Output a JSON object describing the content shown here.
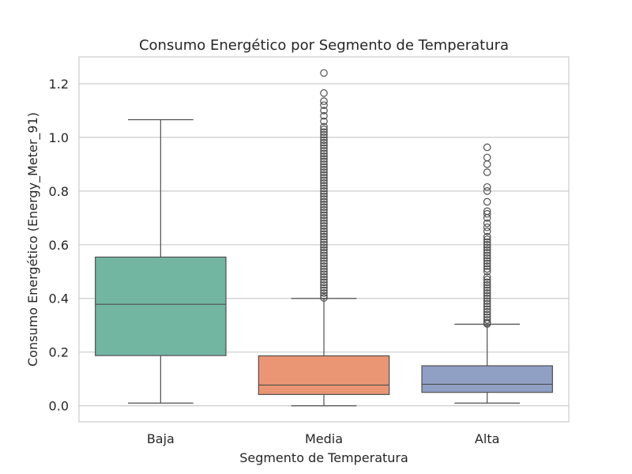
{
  "chart_data": {
    "type": "box",
    "title": "Consumo Energético por Segmento de Temperatura",
    "xlabel": "Segmento de Temperatura",
    "ylabel": "Consumo Energético (Energy_Meter_91)",
    "ylim": [
      -0.06,
      1.3
    ],
    "yticks": [
      0.0,
      0.2,
      0.4,
      0.6,
      0.8,
      1.0,
      1.2
    ],
    "ytick_labels": [
      "0.0",
      "0.2",
      "0.4",
      "0.6",
      "0.8",
      "1.0",
      "1.2"
    ],
    "grid": true,
    "categories": [
      "Baja",
      "Media",
      "Alta"
    ],
    "colors": [
      "#72b5a0",
      "#ea9574",
      "#909fc4"
    ],
    "boxes": [
      {
        "category": "Baja",
        "whisker_low": 0.01,
        "q1": 0.187,
        "median": 0.378,
        "q3": 0.554,
        "whisker_high": 1.066,
        "outliers": []
      },
      {
        "category": "Media",
        "whisker_low": 0.0,
        "q1": 0.042,
        "median": 0.077,
        "q3": 0.186,
        "whisker_high": 0.4,
        "outliers": [
          0.402,
          0.41,
          0.42,
          0.43,
          0.44,
          0.45,
          0.46,
          0.47,
          0.48,
          0.49,
          0.5,
          0.51,
          0.52,
          0.53,
          0.54,
          0.55,
          0.56,
          0.57,
          0.58,
          0.59,
          0.6,
          0.61,
          0.62,
          0.63,
          0.64,
          0.65,
          0.66,
          0.67,
          0.68,
          0.69,
          0.7,
          0.71,
          0.72,
          0.73,
          0.74,
          0.75,
          0.76,
          0.77,
          0.78,
          0.79,
          0.8,
          0.81,
          0.82,
          0.83,
          0.84,
          0.85,
          0.86,
          0.87,
          0.88,
          0.89,
          0.9,
          0.91,
          0.92,
          0.93,
          0.94,
          0.95,
          0.96,
          0.97,
          0.98,
          0.99,
          1.0,
          1.01,
          1.02,
          1.03,
          1.04,
          1.06,
          1.08,
          1.1,
          1.12,
          1.135,
          1.165,
          1.24
        ]
      },
      {
        "category": "Alta",
        "whisker_low": 0.01,
        "q1": 0.05,
        "median": 0.08,
        "q3": 0.149,
        "whisker_high": 0.304,
        "outliers": [
          0.305,
          0.31,
          0.32,
          0.33,
          0.34,
          0.35,
          0.36,
          0.37,
          0.38,
          0.39,
          0.4,
          0.41,
          0.42,
          0.43,
          0.44,
          0.45,
          0.46,
          0.47,
          0.48,
          0.5,
          0.51,
          0.52,
          0.53,
          0.54,
          0.55,
          0.56,
          0.57,
          0.58,
          0.59,
          0.6,
          0.61,
          0.62,
          0.63,
          0.65,
          0.665,
          0.68,
          0.7,
          0.715,
          0.725,
          0.76,
          0.8,
          0.815,
          0.87,
          0.9,
          0.925,
          0.963
        ]
      }
    ]
  }
}
